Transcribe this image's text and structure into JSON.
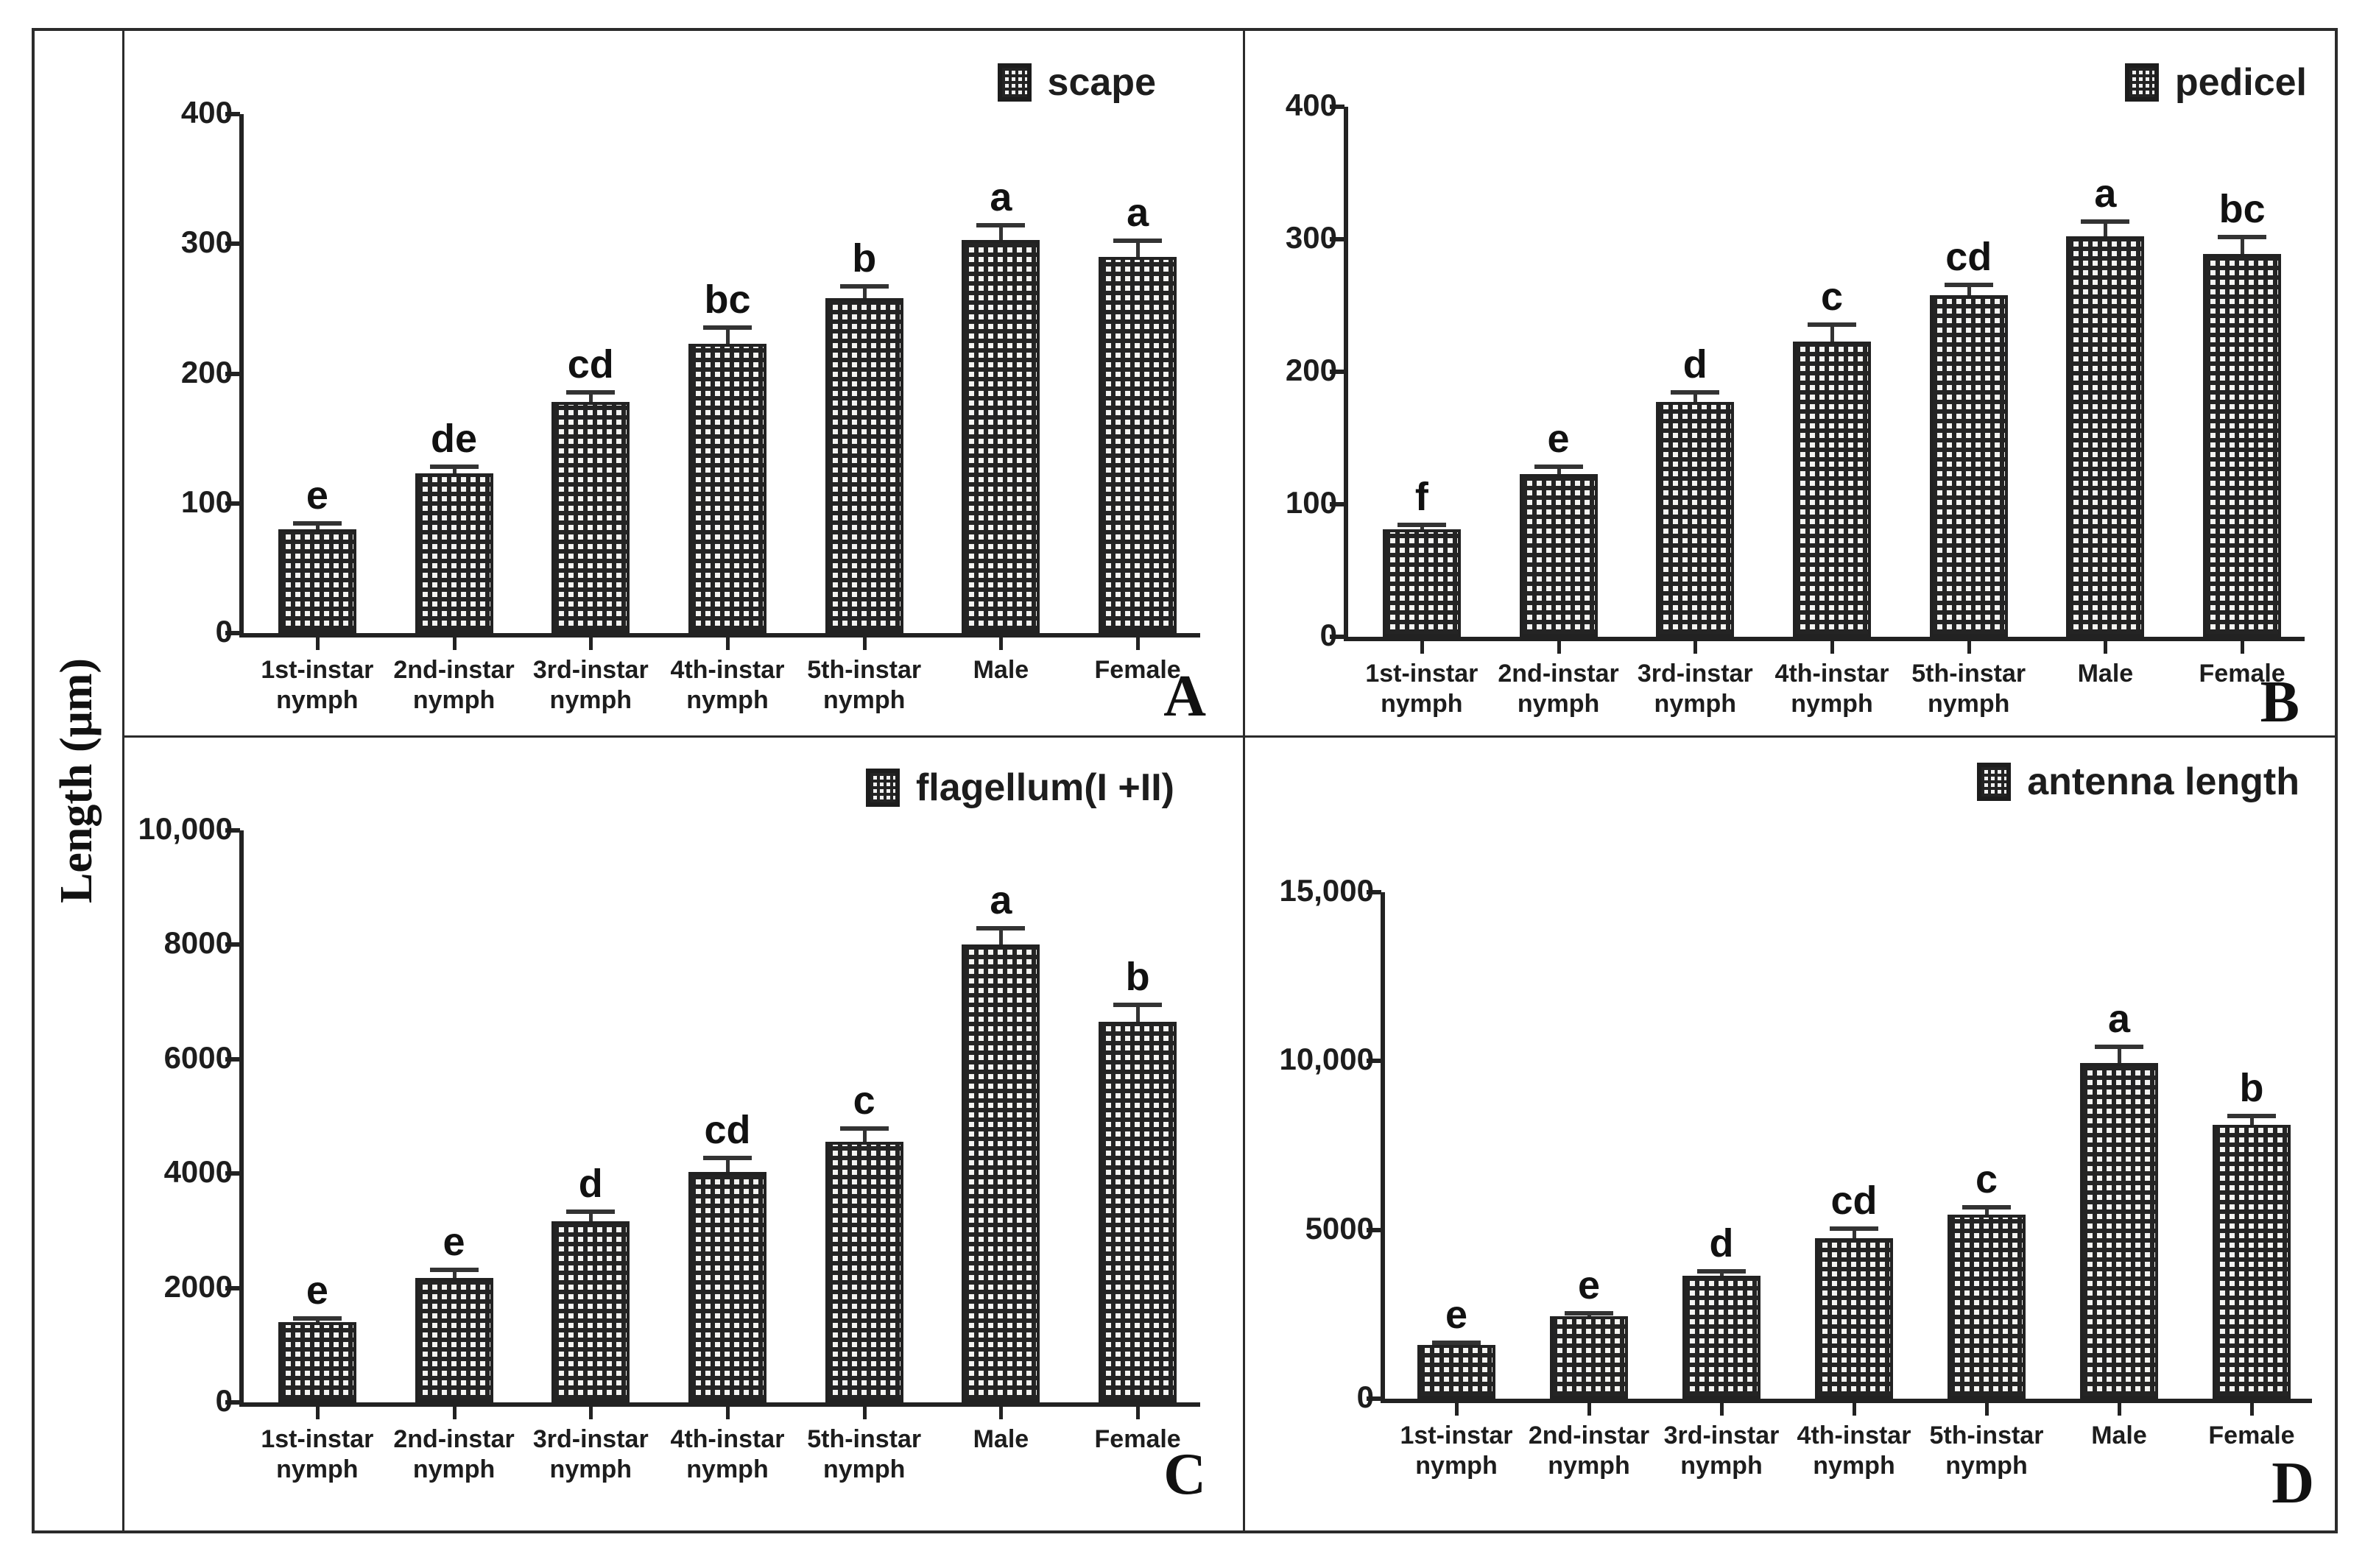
{
  "figure": {
    "shared_y_label": "Length (μm)",
    "ink_color": "#1d1d1d",
    "background_color": "#ffffff"
  },
  "chart_data": [
    {
      "id": "A",
      "type": "bar",
      "panel_letter": "A",
      "legend": "scape",
      "legend_position": "top-right",
      "grid": false,
      "categories": [
        "1st-instar\nnymph",
        "2nd-instar\nnymph",
        "3rd-instar\nnymph",
        "4th-instar\nnymph",
        "5th-instar\nnymph",
        "Male",
        "Female"
      ],
      "values": [
        80,
        123,
        178,
        223,
        258,
        303,
        290
      ],
      "errors": [
        5,
        6,
        8,
        13,
        10,
        12,
        13
      ],
      "sig_letters": [
        "e",
        "de",
        "cd",
        "bc",
        "b",
        "a",
        "a"
      ],
      "ylim": [
        0,
        400
      ],
      "yticks": [
        400,
        300,
        200,
        100,
        0
      ],
      "ytick_labels": [
        "400",
        "300",
        "200",
        "100",
        "0"
      ],
      "xlabel": "",
      "ylabel": "Length (μm)"
    },
    {
      "id": "B",
      "type": "bar",
      "panel_letter": "B",
      "legend": "pedicel",
      "legend_position": "top-right",
      "grid": false,
      "categories": [
        "1st-instar\nnymph",
        "2nd-instar\nnymph",
        "3rd-instar\nnymph",
        "4th-instar\nnymph",
        "5th-instar\nnymph",
        "Male",
        "Female"
      ],
      "values": [
        81,
        123,
        177,
        223,
        258,
        302,
        289
      ],
      "errors": [
        4,
        6,
        8,
        13,
        8,
        12,
        13
      ],
      "sig_letters": [
        "f",
        "e",
        "d",
        "c",
        "cd",
        "a",
        "bc"
      ],
      "ylim": [
        0,
        400
      ],
      "yticks": [
        400,
        300,
        200,
        100,
        0
      ],
      "ytick_labels": [
        "400",
        "300",
        "200",
        "100",
        "0"
      ],
      "xlabel": "",
      "ylabel": "Length (μm)"
    },
    {
      "id": "C",
      "type": "bar",
      "panel_letter": "C",
      "legend": "flagellum(I +II)",
      "legend_position": "top-right",
      "grid": false,
      "categories": [
        "1st-instar\nnymph",
        "2nd-instar\nnymph",
        "3rd-instar\nnymph",
        "4th-instar\nnymph",
        "5th-instar\nnymph",
        "Male",
        "Female"
      ],
      "values": [
        1400,
        2180,
        3170,
        4030,
        4550,
        8000,
        6650
      ],
      "errors": [
        80,
        150,
        170,
        250,
        250,
        300,
        310
      ],
      "sig_letters": [
        "e",
        "e",
        "d",
        "cd",
        "c",
        "a",
        "b"
      ],
      "ylim": [
        0,
        10000
      ],
      "yticks": [
        10000,
        8000,
        6000,
        4000,
        2000,
        0
      ],
      "ytick_labels": [
        "10,000",
        "8000",
        "6000",
        "4000",
        "2000",
        "0"
      ],
      "xlabel": "",
      "ylabel": "Length (μm)"
    },
    {
      "id": "D",
      "type": "bar",
      "panel_letter": "D",
      "legend": "antenna length",
      "legend_position": "top-right",
      "grid": false,
      "categories": [
        "1st-instar\nnymph",
        "2nd-instar\nnymph",
        "3rd-instar\nnymph",
        "4th-instar\nnymph",
        "5th-instar\nnymph",
        "Male",
        "Female"
      ],
      "values": [
        1600,
        2450,
        3650,
        4750,
        5450,
        9950,
        8100
      ],
      "errors": [
        80,
        100,
        150,
        300,
        250,
        500,
        300
      ],
      "sig_letters": [
        "e",
        "e",
        "d",
        "cd",
        "c",
        "a",
        "b"
      ],
      "ylim": [
        0,
        15000
      ],
      "yticks": [
        15000,
        10000,
        5000,
        0
      ],
      "ytick_labels": [
        "15,000",
        "10,000",
        "5000",
        "0"
      ],
      "xlabel": "",
      "ylabel": "Length (μm)"
    }
  ]
}
